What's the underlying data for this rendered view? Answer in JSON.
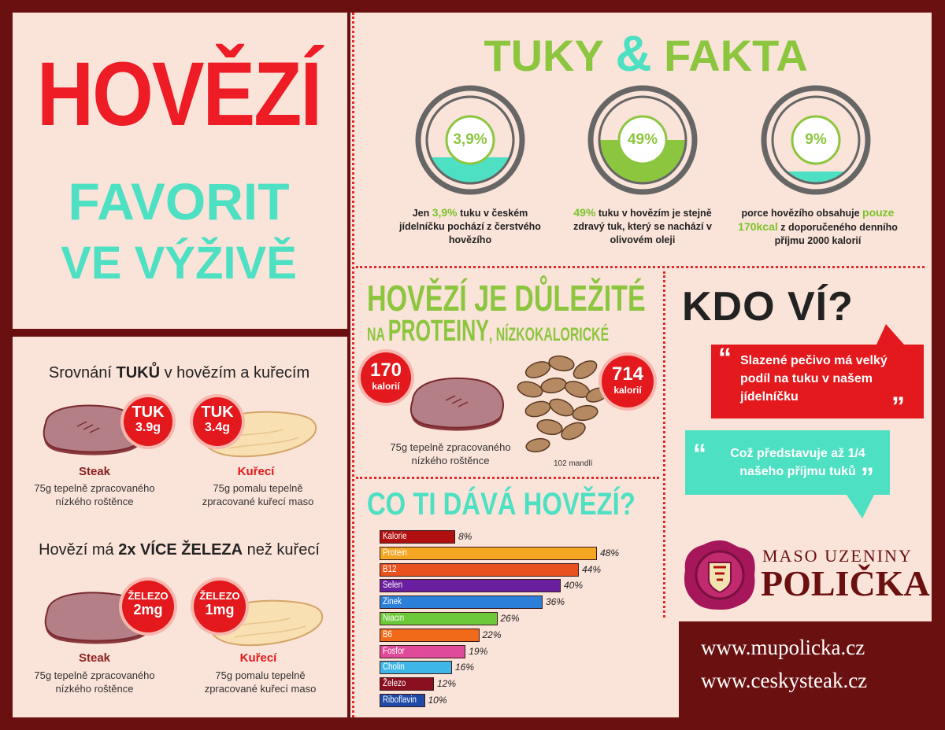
{
  "header": {
    "title_main": "HOVĚZÍ",
    "title_line2": "FAVORIT",
    "title_line3": "VE VÝŽIVĚ"
  },
  "fats_facts": {
    "title_part1": "TUKY",
    "title_amp": "&",
    "title_part2": "FAKTA",
    "rings": [
      {
        "value_label": "3,9%",
        "fill_fraction": 0.039,
        "caption_before": "Jen ",
        "caption_highlight": "3,9%",
        "caption_after": " tuku v českém jídelníčku pochází z čerstvého hovězího"
      },
      {
        "value_label": "49%",
        "fill_fraction": 0.49,
        "caption_before": "",
        "caption_highlight": "49%",
        "caption_after": " tuku v hovězím je stejně zdravý tuk, který se nachází v olivovém oleji"
      },
      {
        "value_label": "9%",
        "fill_fraction": 0.09,
        "caption_before": "porce hovězího obsahuje ",
        "caption_highlight": "pouze 170kcal",
        "caption_after": " z doporučeného denního příjmu 2000 kalorií"
      }
    ]
  },
  "comparison": {
    "fat_heading_before": "Srovnání ",
    "fat_heading_bold": "TUKŮ",
    "fat_heading_after": " v hovězím a kuřecím",
    "fat_items": [
      {
        "badge_title": "TUK",
        "badge_value": "3.9g",
        "name": "Steak",
        "desc": "75g tepelně zpracovaného nízkého roštěnce"
      },
      {
        "badge_title": "TUK",
        "badge_value": "3.4g",
        "name": "Kuřecí",
        "desc": "75g pomalu tepelně zpracované kuřecí maso"
      }
    ],
    "iron_heading_before": "Hovězí má ",
    "iron_heading_bold": "2x VÍCE ŽELEZA",
    "iron_heading_after": " než kuřecí",
    "iron_items": [
      {
        "badge_title": "ŽELEZO",
        "badge_value": "2mg",
        "name": "Steak",
        "desc": "75g tepelně zpracovaného nízkého roštěnce"
      },
      {
        "badge_title": "ŽELEZO",
        "badge_value": "1mg",
        "name": "Kuřecí",
        "desc": "75g pomalu tepelně zpracované kuřecí maso"
      }
    ]
  },
  "protein": {
    "title_line1": "HOVĚZÍ JE DŮLEŽITÉ",
    "title_na": "NA ",
    "title_proteiny": "PROTEINY",
    "title_rest": ", NÍZKOKALORICKÉ",
    "steak_kcal": "170",
    "steak_kcal_unit": "kalorií",
    "almond_kcal": "714",
    "almond_kcal_unit": "kalorií",
    "steak_caption": "75g tepelně zpracovaného nízkého roštěnce",
    "almond_caption": "102 mandlí"
  },
  "nutrients": {
    "title": "CO TI DÁVÁ HOVĚZÍ?"
  },
  "chart_data": {
    "type": "bar",
    "orientation": "horizontal",
    "categories": [
      "Kalorie",
      "Protein",
      "B12",
      "Selen",
      "Zinek",
      "Niacin",
      "B6",
      "Fosfor",
      "Cholin",
      "Železo",
      "Riboflavin"
    ],
    "values": [
      8,
      48,
      44,
      40,
      36,
      26,
      22,
      19,
      16,
      12,
      10
    ],
    "value_labels": [
      "8%",
      "48%",
      "44%",
      "40%",
      "36%",
      "26%",
      "22%",
      "19%",
      "16%",
      "12%",
      "10%"
    ],
    "colors": [
      "#b01010",
      "#f5a623",
      "#e8521e",
      "#6a1fa0",
      "#2b7fd6",
      "#6cc93a",
      "#f06a1a",
      "#e04a9a",
      "#3fb6e8",
      "#8a1020",
      "#1f4aa8"
    ],
    "title": "CO TI DÁVÁ HOVĚZÍ?",
    "xlabel": "",
    "ylabel": ""
  },
  "kdo_vi": {
    "title": "KDO VÍ?",
    "quote1": "Slazené pečivo má velký podíl na tuku v našem jídelníčku",
    "quote2": "Což představuje až 1/4 našeho příjmu tuků"
  },
  "brand": {
    "line1": "MASO UZENINY",
    "line2": "POLIČKA",
    "url1": "www.mupolicka.cz",
    "url2": "www.ceskysteak.cz"
  },
  "colors": {
    "red": "#e3191d",
    "teal": "#4de0c3",
    "green": "#8cc63f",
    "maroon": "#6a1010",
    "panel": "#fae3d9"
  }
}
